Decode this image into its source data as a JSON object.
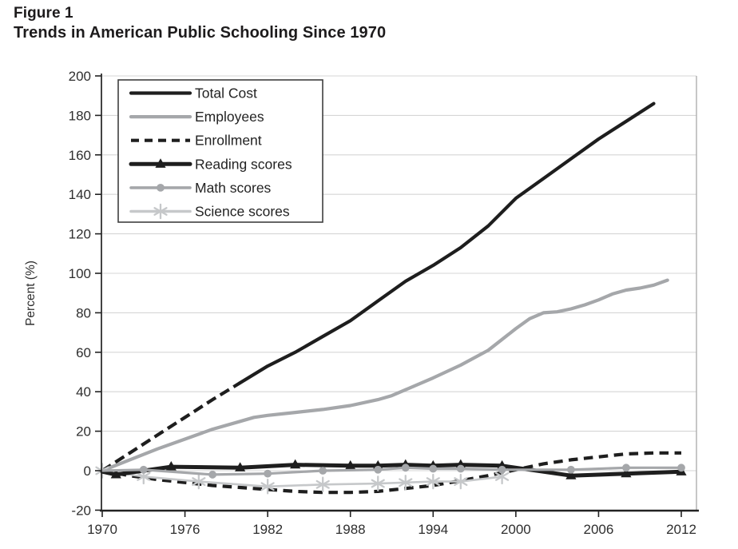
{
  "title": {
    "figure_label": "Figure 1",
    "text": "Trends in American Public Schooling Since 1970"
  },
  "colors": {
    "background": "#ffffff",
    "black_series": "#1e1e1e",
    "gray_series": "#a5a7aa",
    "light_gray_series": "#c6c8ca",
    "grid": "#d5d5d5",
    "axis": "#222222",
    "right_border": "#a9a9a9",
    "tick_text": "#2e2e2e",
    "legend_border": "#3f3f3f",
    "legend_text": "#232323"
  },
  "chart_data": {
    "type": "line",
    "title": "Trends in American Public Schooling Since 1970",
    "xlabel": "",
    "ylabel": "Percent (%)",
    "xlim": [
      1969.9,
      2013.1
    ],
    "ylim": [
      -20,
      200
    ],
    "x_ticks": [
      1970,
      1976,
      1982,
      1988,
      1994,
      2000,
      2006,
      2012
    ],
    "y_ticks": [
      200,
      180,
      160,
      140,
      120,
      100,
      80,
      60,
      40,
      20,
      0,
      -20
    ],
    "grid": "horizontal",
    "legend_position": "top-left-inside",
    "series": [
      {
        "name": "Total Cost",
        "color": "#1e1e1e",
        "width": 4.2,
        "style": "solid",
        "dashed_until": 1980,
        "marker": "none",
        "points": [
          [
            1970,
            0
          ],
          [
            1972,
            9
          ],
          [
            1974,
            18
          ],
          [
            1976,
            27
          ],
          [
            1978,
            36
          ],
          [
            1980,
            44.5
          ],
          [
            1982,
            53
          ],
          [
            1984,
            60
          ],
          [
            1986,
            68
          ],
          [
            1988,
            76
          ],
          [
            1990,
            86
          ],
          [
            1992,
            96
          ],
          [
            1994,
            104
          ],
          [
            1996,
            113
          ],
          [
            1998,
            124
          ],
          [
            2000,
            138
          ],
          [
            2002,
            148
          ],
          [
            2004,
            158
          ],
          [
            2006,
            168
          ],
          [
            2008,
            177
          ],
          [
            2010,
            186
          ]
        ]
      },
      {
        "name": "Employees",
        "color": "#a5a7aa",
        "width": 4.2,
        "style": "solid",
        "marker": "none",
        "points": [
          [
            1970,
            0
          ],
          [
            1972,
            5.5
          ],
          [
            1974,
            11
          ],
          [
            1976,
            16
          ],
          [
            1978,
            21
          ],
          [
            1980,
            25
          ],
          [
            1981,
            27
          ],
          [
            1982,
            28
          ],
          [
            1984,
            29.5
          ],
          [
            1986,
            31
          ],
          [
            1988,
            33
          ],
          [
            1990,
            36
          ],
          [
            1991,
            38
          ],
          [
            1992,
            41
          ],
          [
            1994,
            47
          ],
          [
            1996,
            53.5
          ],
          [
            1998,
            61
          ],
          [
            2000,
            72
          ],
          [
            2001,
            77
          ],
          [
            2002,
            80
          ],
          [
            2003,
            80.5
          ],
          [
            2004,
            82
          ],
          [
            2005,
            84
          ],
          [
            2006,
            86.5
          ],
          [
            2007,
            89.5
          ],
          [
            2008,
            91.5
          ],
          [
            2009,
            92.5
          ],
          [
            2010,
            94
          ],
          [
            2011,
            96.5
          ]
        ]
      },
      {
        "name": "Enrollment",
        "color": "#1e1e1e",
        "width": 4.2,
        "style": "dashed",
        "marker": "none",
        "points": [
          [
            1970,
            0
          ],
          [
            1972,
            -2.5
          ],
          [
            1974,
            -4.5
          ],
          [
            1976,
            -6
          ],
          [
            1978,
            -7.5
          ],
          [
            1980,
            -8.5
          ],
          [
            1982,
            -9.5
          ],
          [
            1984,
            -10.5
          ],
          [
            1986,
            -11
          ],
          [
            1988,
            -11
          ],
          [
            1990,
            -10.5
          ],
          [
            1992,
            -9
          ],
          [
            1994,
            -7.5
          ],
          [
            1996,
            -5
          ],
          [
            1998,
            -2.5
          ],
          [
            2000,
            0.5
          ],
          [
            2002,
            3.5
          ],
          [
            2004,
            5.5
          ],
          [
            2006,
            7
          ],
          [
            2008,
            8.5
          ],
          [
            2010,
            9
          ],
          [
            2012,
            9
          ]
        ]
      },
      {
        "name": "Reading scores",
        "color": "#1e1e1e",
        "width": 5,
        "style": "solid",
        "marker": "triangle",
        "marker_years": [
          1971,
          1975,
          1980,
          1984,
          1988,
          1990,
          1992,
          1994,
          1996,
          1999,
          2004,
          2008,
          2012
        ],
        "points": [
          [
            1970,
            -0.5
          ],
          [
            1971,
            -2
          ],
          [
            1975,
            2
          ],
          [
            1980,
            1.5
          ],
          [
            1984,
            3
          ],
          [
            1988,
            2.5
          ],
          [
            1990,
            2.5
          ],
          [
            1992,
            3
          ],
          [
            1994,
            2.5
          ],
          [
            1996,
            3
          ],
          [
            1999,
            2.5
          ],
          [
            2004,
            -2.5
          ],
          [
            2008,
            -1.5
          ],
          [
            2012,
            -0.5
          ]
        ]
      },
      {
        "name": "Math scores",
        "color": "#a5a7aa",
        "width": 3.2,
        "style": "solid",
        "marker": "circle",
        "marker_years": [
          1973,
          1978,
          1982,
          1986,
          1990,
          1992,
          1994,
          1996,
          1999,
          2004,
          2008,
          2012
        ],
        "points": [
          [
            1970,
            0
          ],
          [
            1973,
            0.5
          ],
          [
            1978,
            -2
          ],
          [
            1982,
            -1.5
          ],
          [
            1986,
            0
          ],
          [
            1990,
            0.5
          ],
          [
            1992,
            1.5
          ],
          [
            1994,
            1
          ],
          [
            1996,
            1
          ],
          [
            1999,
            0.5
          ],
          [
            2004,
            0.5
          ],
          [
            2008,
            1.5
          ],
          [
            2012,
            1.5
          ]
        ]
      },
      {
        "name": "Science scores",
        "color": "#c6c8ca",
        "width": 2.6,
        "style": "solid",
        "marker": "asterisk",
        "marker_years": [
          1970,
          1973,
          1977,
          1982,
          1986,
          1990,
          1992,
          1994,
          1996,
          1999
        ],
        "points": [
          [
            1970,
            0
          ],
          [
            1973,
            -3
          ],
          [
            1977,
            -5.5
          ],
          [
            1982,
            -8
          ],
          [
            1986,
            -7
          ],
          [
            1990,
            -6.5
          ],
          [
            1992,
            -6
          ],
          [
            1994,
            -5.5
          ],
          [
            1996,
            -5.5
          ],
          [
            1999,
            -3
          ]
        ]
      }
    ]
  }
}
